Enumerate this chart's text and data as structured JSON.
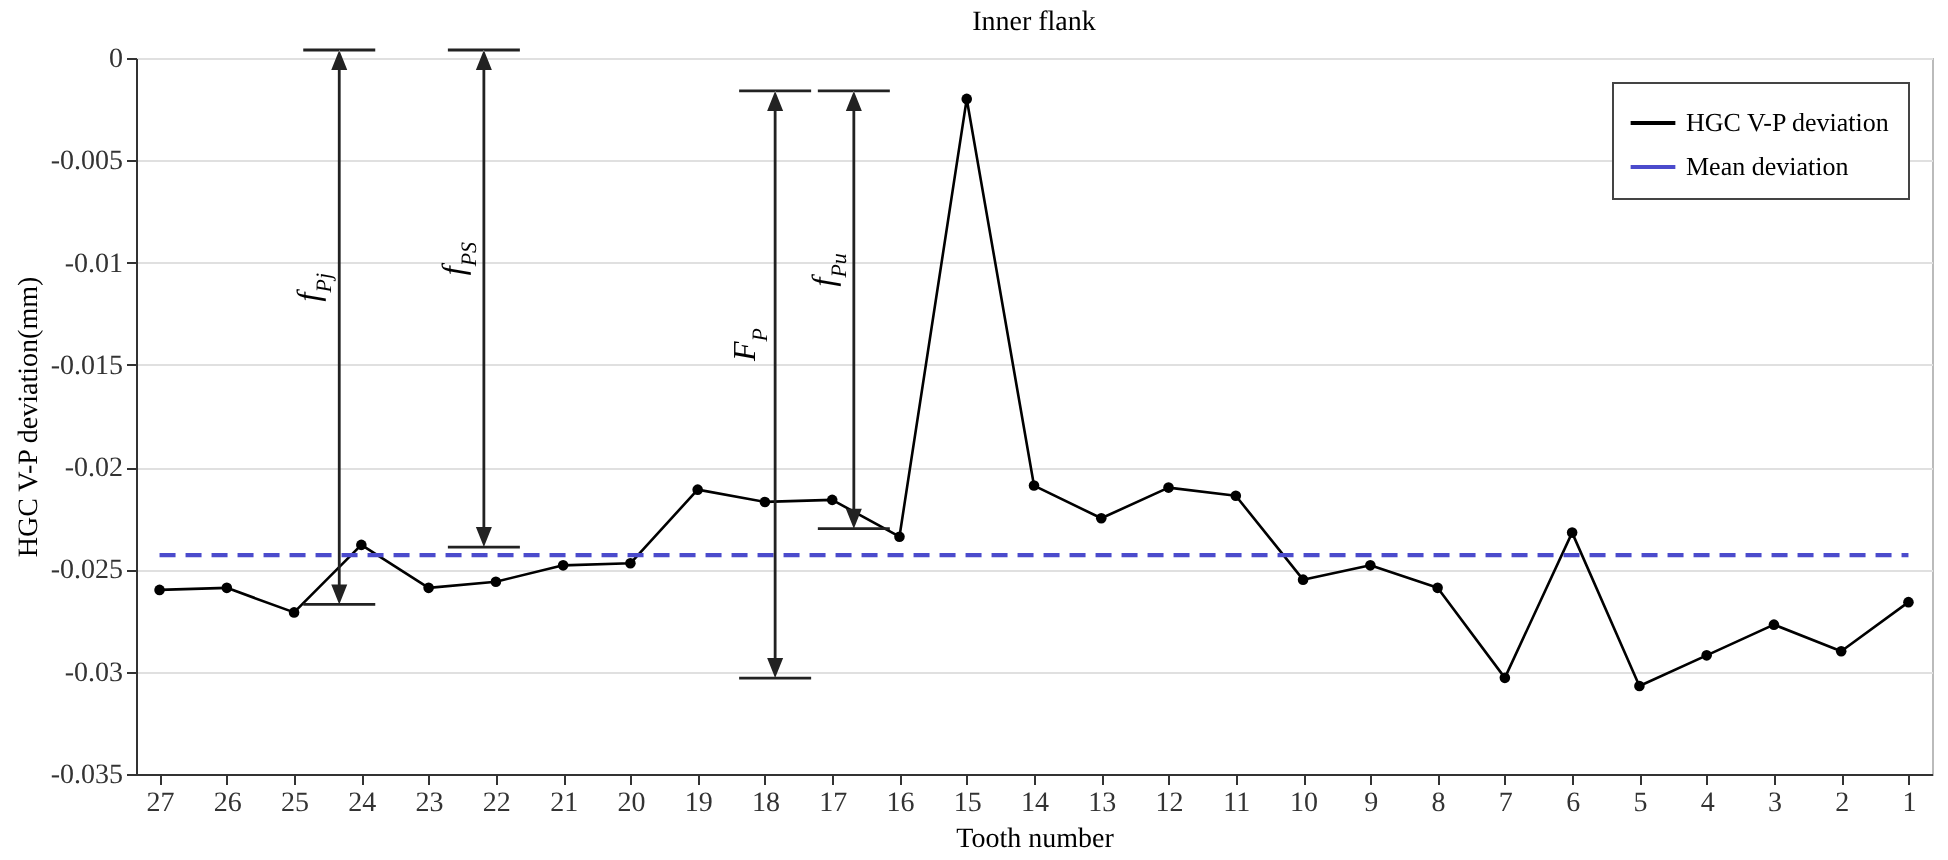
{
  "chart_data": {
    "type": "line",
    "title": "Inner flank",
    "xlabel": "Tooth number",
    "ylabel": "HGC V-P deviation(mm)",
    "categories": [
      "27",
      "26",
      "25",
      "24",
      "23",
      "22",
      "21",
      "20",
      "19",
      "18",
      "17",
      "16",
      "15",
      "14",
      "13",
      "12",
      "11",
      "10",
      "9",
      "8",
      "7",
      "6",
      "5",
      "4",
      "3",
      "2",
      "1"
    ],
    "series": [
      {
        "name": "HGC V-P deviation",
        "color": "#000000",
        "marker": "circle",
        "line_style": "solid",
        "values": [
          -0.026,
          -0.0259,
          -0.0271,
          -0.0238,
          -0.0259,
          -0.0256,
          -0.0248,
          -0.0247,
          -0.0211,
          -0.0217,
          -0.0216,
          -0.0234,
          -0.002,
          -0.0209,
          -0.0225,
          -0.021,
          -0.0214,
          -0.0255,
          -0.0248,
          -0.0259,
          -0.0303,
          -0.0232,
          -0.0307,
          -0.0292,
          -0.0277,
          -0.029,
          -0.0266
        ]
      },
      {
        "name": "Mean deviation",
        "color": "#4b4bcc",
        "marker": "none",
        "line_style": "dashed",
        "values": [
          -0.0243,
          -0.0243,
          -0.0243,
          -0.0243,
          -0.0243,
          -0.0243,
          -0.0243,
          -0.0243,
          -0.0243,
          -0.0243,
          -0.0243,
          -0.0243,
          -0.0243,
          -0.0243,
          -0.0243,
          -0.0243,
          -0.0243,
          -0.0243,
          -0.0243,
          -0.0243,
          -0.0243,
          -0.0243,
          -0.0243,
          -0.0243,
          -0.0243,
          -0.0243,
          -0.0243
        ]
      }
    ],
    "ylim": [
      -0.035,
      0
    ],
    "yticks": [
      -0.035,
      -0.03,
      -0.025,
      -0.02,
      -0.015,
      -0.01,
      -0.005,
      0
    ],
    "grid": "y",
    "legend": "top right",
    "annotations": [
      "f$_{Pj}$",
      "f$_{PS}$",
      "F$_{P}$",
      "f$_{Pu}$"
    ]
  }
}
